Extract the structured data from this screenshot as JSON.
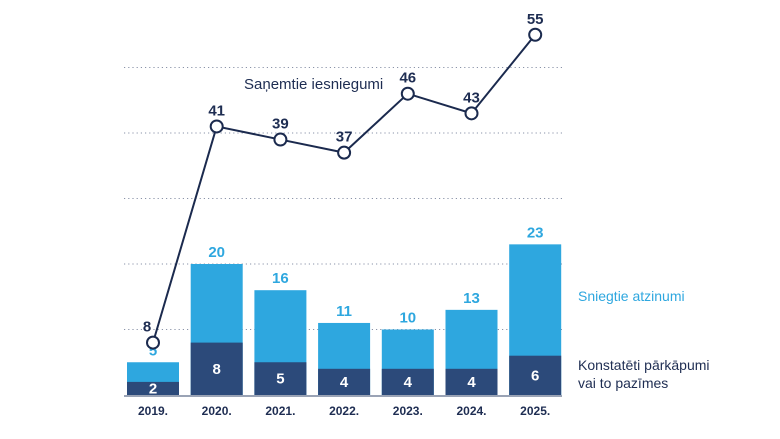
{
  "chart_data": {
    "type": "bar",
    "title": "",
    "xlabel": "",
    "ylabel": "",
    "ylim": [
      0,
      60
    ],
    "grid": true,
    "categories": [
      "2019.",
      "2020.",
      "2021.",
      "2022.",
      "2023.",
      "2024.",
      "2025."
    ],
    "series": [
      {
        "name": "Sniegtie atzinumi",
        "type": "bar",
        "color": "#2ea7df",
        "values": [
          5,
          20,
          16,
          11,
          10,
          13,
          23
        ]
      },
      {
        "name": "Konstatēti pārkāpumi vai to pazīmes",
        "type": "bar",
        "color": "#2c4a7a",
        "values": [
          2,
          8,
          5,
          4,
          4,
          4,
          6
        ]
      },
      {
        "name": "Saņemtie iesniegumi",
        "type": "line",
        "color": "#1b2a4e",
        "values": [
          8,
          41,
          39,
          37,
          46,
          43,
          55
        ]
      }
    ],
    "gridlines": [
      10,
      20,
      30,
      40,
      50
    ],
    "legend": {
      "total_label": "Sniegtie atzinumi",
      "viol_label_line1": "Konstatēti pārkāpumi",
      "viol_label_line2": "vai to pazīmes",
      "placement": "right"
    },
    "line_title": "Saņemtie iesniegumi"
  }
}
